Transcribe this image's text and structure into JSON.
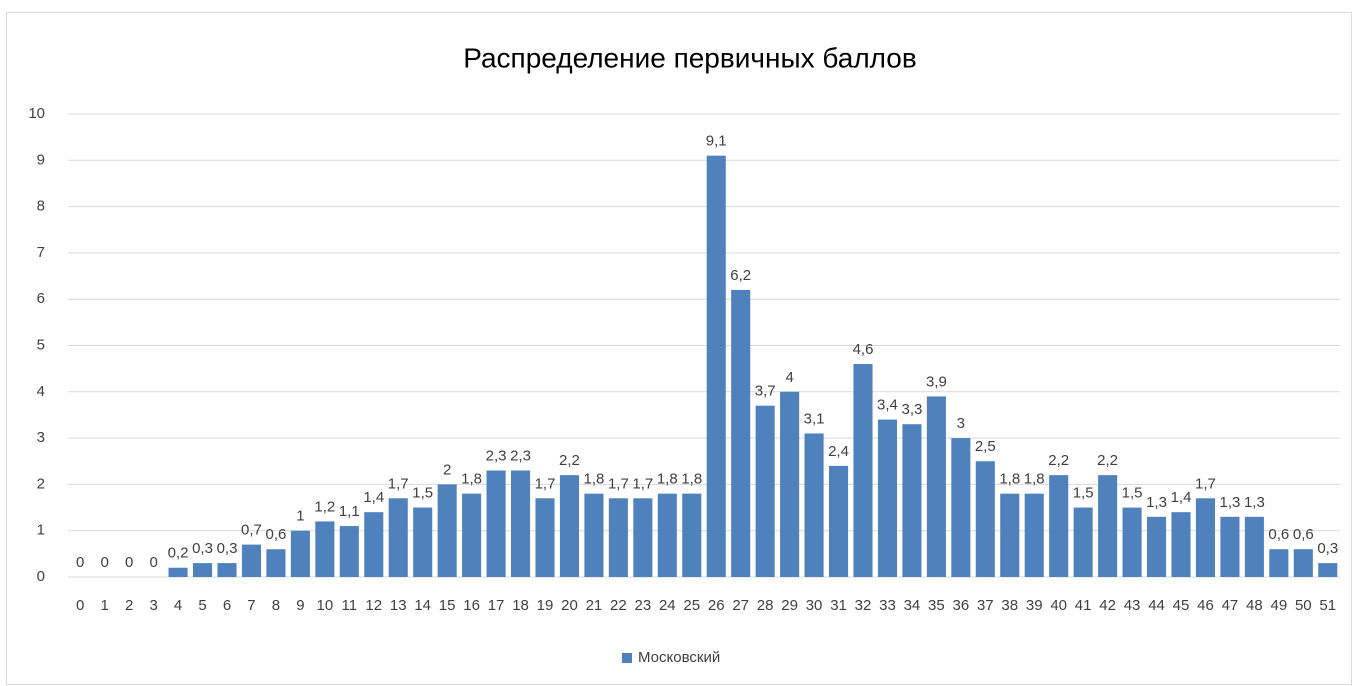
{
  "chart_data": {
    "type": "bar",
    "title": "Распределение первичных баллов",
    "categories": [
      "0",
      "1",
      "2",
      "3",
      "4",
      "5",
      "6",
      "7",
      "8",
      "9",
      "10",
      "11",
      "12",
      "13",
      "14",
      "15",
      "16",
      "17",
      "18",
      "19",
      "20",
      "21",
      "22",
      "23",
      "24",
      "25",
      "26",
      "27",
      "28",
      "29",
      "30",
      "31",
      "32",
      "33",
      "34",
      "35",
      "36",
      "37",
      "38",
      "39",
      "40",
      "41",
      "42",
      "43",
      "44",
      "45",
      "46",
      "47",
      "48",
      "49",
      "50",
      "51"
    ],
    "series": [
      {
        "name": "Московский",
        "color": "#4f81bd",
        "values": [
          0,
          0,
          0,
          0,
          0.2,
          0.3,
          0.3,
          0.7,
          0.6,
          1,
          1.2,
          1.1,
          1.4,
          1.7,
          1.5,
          2,
          1.8,
          2.3,
          2.3,
          1.7,
          2.2,
          1.8,
          1.7,
          1.7,
          1.8,
          1.8,
          9.1,
          6.2,
          3.7,
          4,
          3.1,
          2.4,
          4.6,
          3.4,
          3.3,
          3.9,
          3,
          2.5,
          1.8,
          1.8,
          2.2,
          1.5,
          2.2,
          1.5,
          1.3,
          1.4,
          1.7,
          1.3,
          1.3,
          0.6,
          0.6,
          0.3
        ],
        "value_labels": [
          "0",
          "0",
          "0",
          "0",
          "0,2",
          "0,3",
          "0,3",
          "0,7",
          "0,6",
          "1",
          "1,2",
          "1,1",
          "1,4",
          "1,7",
          "1,5",
          "2",
          "1,8",
          "2,3",
          "2,3",
          "1,7",
          "2,2",
          "1,8",
          "1,7",
          "1,7",
          "1,8",
          "1,8",
          "9,1",
          "6,2",
          "3,7",
          "4",
          "3,1",
          "2,4",
          "4,6",
          "3,4",
          "3,3",
          "3,9",
          "3",
          "2,5",
          "1,8",
          "1,8",
          "2,2",
          "1,5",
          "2,2",
          "1,5",
          "1,3",
          "1,4",
          "1,7",
          "1,3",
          "1,3",
          "0,6",
          "0,6",
          "0,3"
        ]
      }
    ],
    "ylim": [
      0,
      10
    ],
    "yticks": [
      0,
      1,
      2,
      3,
      4,
      5,
      6,
      7,
      8,
      9,
      10
    ],
    "grid": true,
    "legend": "bottom"
  }
}
